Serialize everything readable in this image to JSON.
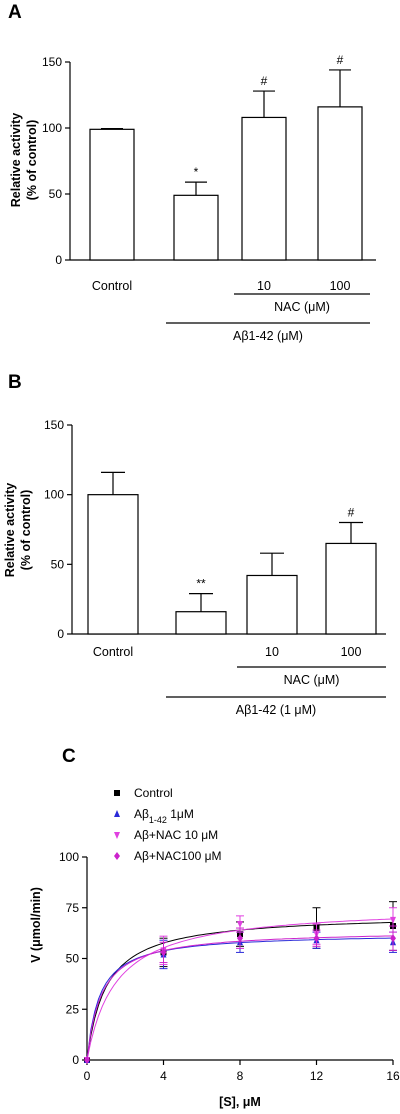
{
  "chart_data": [
    {
      "panel": "A",
      "type": "bar",
      "ylabel": [
        "Relative activity",
        "(% of control)"
      ],
      "ylim": [
        0,
        150
      ],
      "yticks": [
        0,
        50,
        100,
        150
      ],
      "categories": [
        "Control",
        "",
        "10",
        "100"
      ],
      "values": [
        99,
        49,
        108,
        116
      ],
      "errors": [
        0.5,
        10,
        20,
        28
      ],
      "significance": [
        "",
        "*",
        "#",
        "#"
      ],
      "group_labels": [
        {
          "label": "NAC (μM)",
          "from": 2,
          "to": 3
        },
        {
          "label": "Aβ1-42 (μM)",
          "from": 1,
          "to": 3
        }
      ]
    },
    {
      "panel": "B",
      "type": "bar",
      "ylabel": [
        "Relative activity",
        "(% of control)"
      ],
      "ylim": [
        0,
        150
      ],
      "yticks": [
        0,
        50,
        100,
        150
      ],
      "categories": [
        "Control",
        "",
        "10",
        "100"
      ],
      "values": [
        100,
        16,
        42,
        65
      ],
      "errors": [
        16,
        13,
        16,
        15
      ],
      "significance": [
        "",
        "**",
        "",
        "#"
      ],
      "group_labels": [
        {
          "label": "NAC (μM)",
          "from": 2,
          "to": 3
        },
        {
          "label": "Aβ1-42 (1 μM)",
          "from": 1,
          "to": 3
        }
      ]
    },
    {
      "panel": "C",
      "type": "scatter",
      "xlabel": "[S], μM",
      "ylabel": "V (μmol/min)",
      "xlim": [
        0,
        16
      ],
      "ylim": [
        0,
        100
      ],
      "xticks": [
        0,
        4,
        8,
        12,
        16
      ],
      "yticks": [
        0,
        25,
        50,
        75,
        100
      ],
      "x": [
        0,
        4,
        8,
        12,
        16
      ],
      "series": [
        {
          "name": "Control",
          "label_main": "Control",
          "label_sub": "",
          "label_tail": "",
          "color": "#000000",
          "marker": "square",
          "values": [
            0,
            53,
            62,
            65,
            66
          ],
          "errors": [
            0,
            7,
            6,
            10,
            12
          ],
          "vmax": 72,
          "km": 1.0
        },
        {
          "name": "Aβ1-42 1μM",
          "label_main": "Aβ",
          "label_sub": "1-42",
          "label_tail": " 1μM",
          "color": "#2a2ad8",
          "marker": "triangle",
          "values": [
            0,
            52,
            58,
            59,
            58
          ],
          "errors": [
            0,
            7,
            5,
            4,
            5
          ],
          "vmax": 62.5,
          "km": 0.65
        },
        {
          "name": "Aβ+NAC 10 μM",
          "label_main": "Aβ+NAC 10 μM",
          "label_sub": "",
          "label_tail": "",
          "color": "#e040e0",
          "marker": "triangle-down",
          "values": [
            0,
            54,
            67,
            62,
            69
          ],
          "errors": [
            0,
            7,
            4,
            5,
            6
          ],
          "vmax": 76,
          "km": 1.5
        },
        {
          "name": "Aβ+NAC100 μM",
          "label_main": "Aβ+NAC100 μM",
          "label_sub": "",
          "label_tail": "",
          "color": "#cc22cc",
          "marker": "diamond",
          "values": [
            0,
            53,
            60,
            60,
            60
          ],
          "errors": [
            0,
            5,
            5,
            4,
            6
          ],
          "vmax": 64,
          "km": 0.75
        }
      ]
    }
  ]
}
